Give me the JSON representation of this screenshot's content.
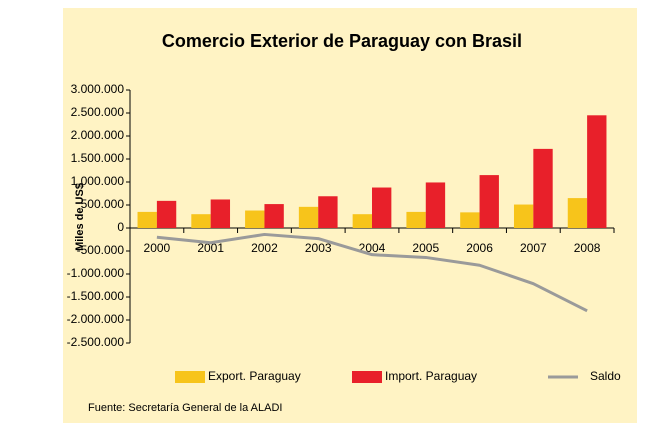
{
  "chart_data": {
    "type": "bar",
    "title": "Comercio Exterior de Paraguay con Brasil",
    "ylabel": "Miles de US$",
    "source": "Fuente: Secretaría General de la ALADI",
    "categories": [
      "2000",
      "2001",
      "2002",
      "2003",
      "2004",
      "2005",
      "2006",
      "2007",
      "2008"
    ],
    "series": [
      {
        "name": "Export. Paraguay",
        "type": "bar",
        "color": "#f7c41b",
        "values": [
          350000,
          300000,
          380000,
          460000,
          300000,
          350000,
          340000,
          510000,
          650000
        ]
      },
      {
        "name": "Import. Paraguay",
        "type": "bar",
        "color": "#e8202a",
        "values": [
          590000,
          620000,
          520000,
          690000,
          880000,
          990000,
          1150000,
          1720000,
          2450000
        ]
      },
      {
        "name": "Saldo",
        "type": "line",
        "color": "#9a9a9a",
        "values": [
          -200000,
          -320000,
          -140000,
          -230000,
          -580000,
          -640000,
          -810000,
          -1210000,
          -1800000
        ]
      }
    ],
    "ylim": [
      -2500000,
      3000000
    ],
    "yticks": [
      {
        "value": -2500000,
        "label": "-2.500.000"
      },
      {
        "value": -2000000,
        "label": "-2.000.000"
      },
      {
        "value": -1500000,
        "label": "-1.500.000"
      },
      {
        "value": -1000000,
        "label": "-1.000.000"
      },
      {
        "value": -500000,
        "label": "-500.000"
      },
      0,
      {
        "value": 500000,
        "label": "500.000"
      },
      {
        "value": 1000000,
        "label": "1.000.000"
      },
      {
        "value": 1500000,
        "label": "1.500.000"
      },
      {
        "value": 2000000,
        "label": "2.000.000"
      },
      {
        "value": 2500000,
        "label": "2.500.000"
      },
      {
        "value": 3000000,
        "label": "3.000.000"
      }
    ],
    "legend": "bottom"
  }
}
